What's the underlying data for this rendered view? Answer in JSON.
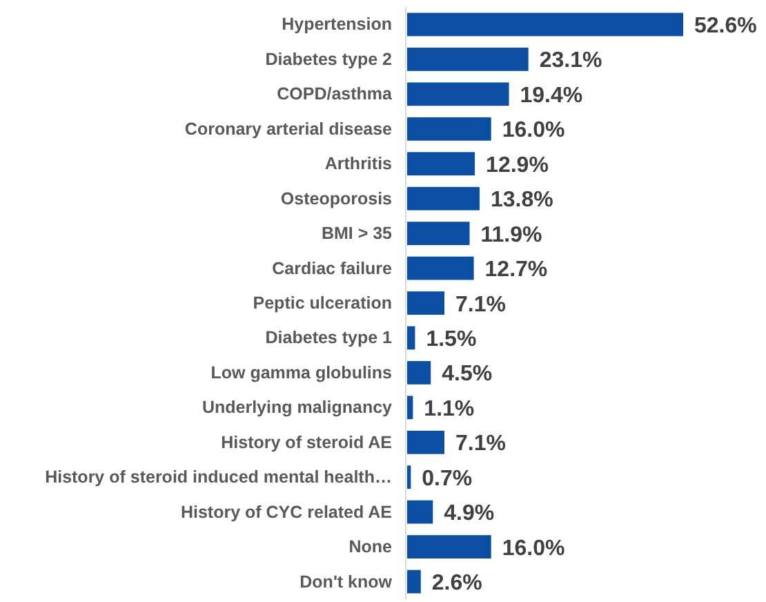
{
  "chart_data": {
    "type": "bar",
    "orientation": "horizontal",
    "categories": [
      "Hypertension",
      "Diabetes type 2",
      "COPD/asthma",
      "Coronary arterial disease",
      "Arthritis",
      "Osteoporosis",
      "BMI > 35",
      "Cardiac failure",
      "Peptic ulceration",
      "Diabetes type 1",
      "Low gamma globulins",
      "Underlying malignancy",
      "History of steroid AE",
      "History of steroid induced mental health…",
      "History of CYC related AE",
      "None",
      "Don't know"
    ],
    "values": [
      52.6,
      23.1,
      19.4,
      16.0,
      12.9,
      13.8,
      11.9,
      12.7,
      7.1,
      1.5,
      4.5,
      1.1,
      7.1,
      0.7,
      4.9,
      16.0,
      2.6
    ],
    "value_labels": [
      "52.6%",
      "23.1%",
      "19.4%",
      "16.0%",
      "12.9%",
      "13.8%",
      "11.9%",
      "12.7%",
      "7.1%",
      "1.5%",
      "4.5%",
      "1.1%",
      "7.1%",
      "0.7%",
      "4.9%",
      "16.0%",
      "2.6%"
    ],
    "color": "#0b4ea2"
  }
}
